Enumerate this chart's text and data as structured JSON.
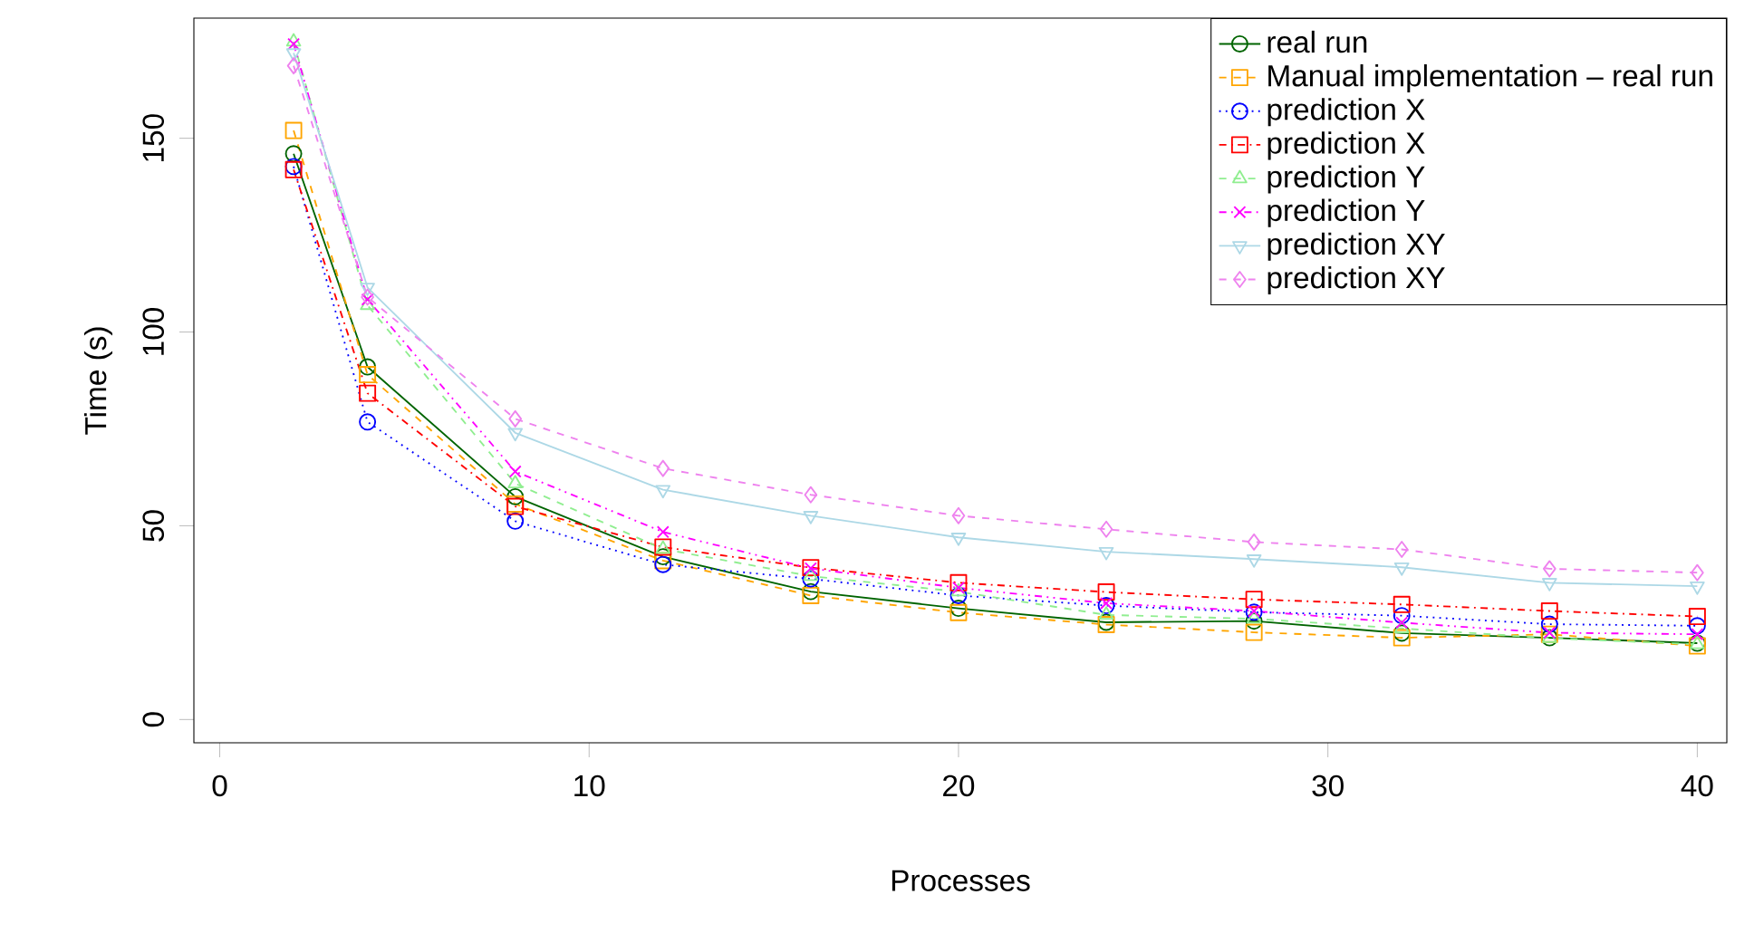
{
  "chart_data": {
    "type": "line",
    "xlabel": "Processes",
    "ylabel": "Time (s)",
    "xlim": [
      -0.7,
      40.8
    ],
    "ylim": [
      -6,
      181
    ],
    "xticks": [
      0,
      10,
      20,
      30,
      40
    ],
    "yticks": [
      0,
      50,
      100,
      150
    ],
    "x": [
      2,
      4,
      8,
      12,
      16,
      20,
      24,
      28,
      32,
      36,
      40
    ],
    "grid": false,
    "legend": "top right",
    "series": [
      {
        "name": "real run",
        "color": "#006400",
        "marker": "circle",
        "line_style": "solid",
        "values": [
          146,
          91,
          57.5,
          42,
          33,
          28.7,
          25.1,
          25.4,
          22.3,
          21.1,
          19.7
        ]
      },
      {
        "name": "Manual implementation – real run",
        "color": "#ffa500",
        "marker": "square",
        "line_style": "dashed",
        "values": [
          152,
          89,
          55.6,
          41,
          32,
          27.6,
          24.5,
          22.5,
          21.1,
          22,
          19
        ]
      },
      {
        "name": "prediction X",
        "color": "#0000ff",
        "marker": "circle",
        "line_style": "dotted",
        "values": [
          142.7,
          76.8,
          51.2,
          40,
          36.3,
          32,
          29.4,
          27.7,
          26.8,
          24.6,
          24.2
        ]
      },
      {
        "name": "prediction X",
        "color": "#ff0000",
        "marker": "square",
        "line_style": "dashdot",
        "values": [
          141.9,
          84.2,
          55,
          44.5,
          39.2,
          35.3,
          32.9,
          31,
          29.7,
          28,
          26.6
        ]
      },
      {
        "name": "prediction Y",
        "color": "#90ee90",
        "marker": "triangle",
        "line_style": "dashed",
        "values": [
          174.9,
          106.9,
          60.9,
          44,
          37,
          33,
          27,
          26,
          23.5,
          21,
          19.4
        ]
      },
      {
        "name": "prediction Y",
        "color": "#ff00ff",
        "marker": "cross",
        "line_style": "dashdotdot",
        "values": [
          174.3,
          108.4,
          64,
          48.4,
          39,
          34,
          30,
          28,
          25,
          22.4,
          22
        ]
      },
      {
        "name": "prediction XY",
        "color": "#add8e6",
        "marker": "triangle down",
        "line_style": "solid",
        "values": [
          172,
          111.5,
          74,
          59.3,
          52.6,
          47,
          43.3,
          41.4,
          39.3,
          35.3,
          34.4
        ]
      },
      {
        "name": "prediction XY",
        "color": "#ee82ee",
        "marker": "diamond",
        "line_style": "dashed",
        "values": [
          168.7,
          109,
          77.6,
          64.8,
          58,
          52.6,
          49.1,
          45.8,
          43.9,
          38.9,
          37.9
        ]
      }
    ]
  }
}
